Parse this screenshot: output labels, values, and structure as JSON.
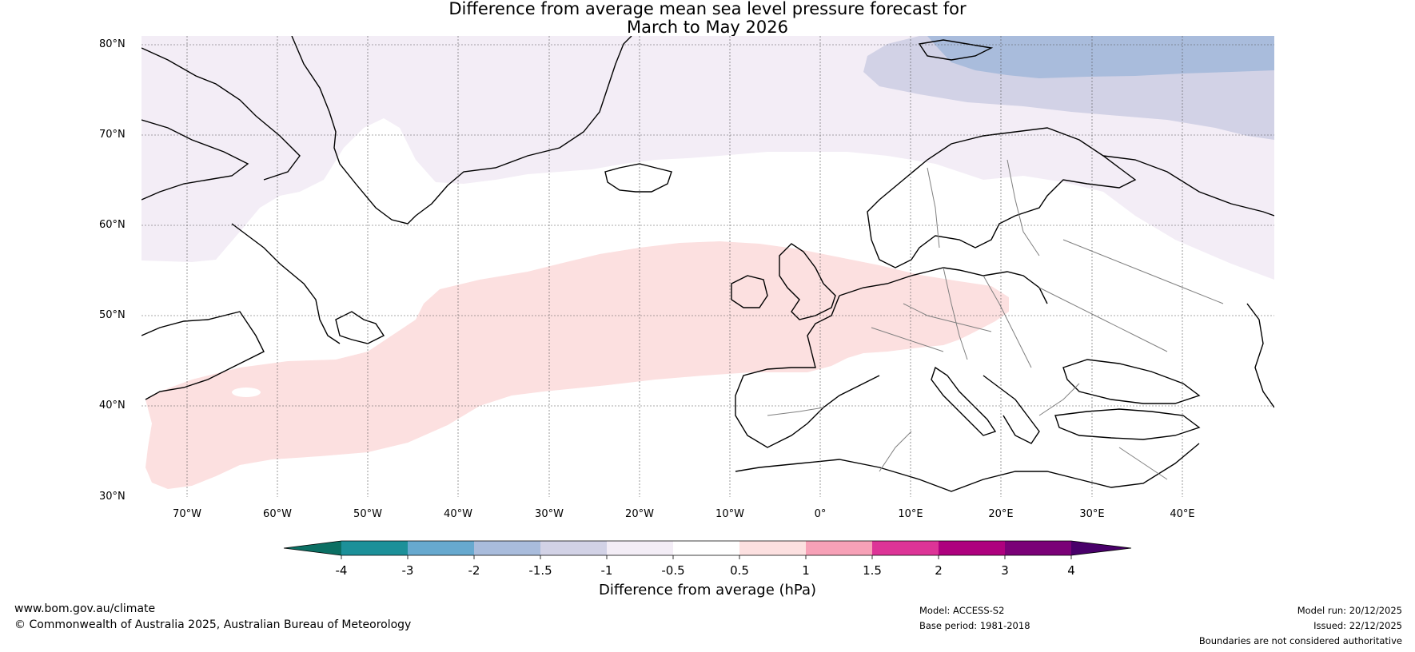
{
  "title": {
    "line1": "Difference from average mean sea level pressure forecast for",
    "line2": "March to May 2026"
  },
  "map": {
    "latitude_labels": [
      "80°N",
      "70°N",
      "60°N",
      "50°N",
      "40°N",
      "30°N"
    ],
    "longitude_labels": [
      "70°W",
      "60°W",
      "50°W",
      "40°W",
      "30°W",
      "20°W",
      "10°W",
      "0°",
      "10°E",
      "20°E",
      "30°E",
      "40°E"
    ],
    "colors": {
      "neg_2_to_neg_1_5": "#a9bcdc",
      "neg_1_5_to_neg_1": "#d2d2e6",
      "neg_1_to_neg_0_5": "#f3edf6",
      "pos_0_5_to_1": "#fce0e0",
      "coastline": "#000000",
      "border": "#808080"
    }
  },
  "colorbar": {
    "tick_labels": [
      "-4",
      "-3",
      "-2",
      "-1.5",
      "-1",
      "-0.5",
      "0.5",
      "1",
      "1.5",
      "2",
      "3",
      "4"
    ],
    "colors": [
      "#0b6f63",
      "#1c9099",
      "#67a9cf",
      "#a9bcdc",
      "#d2d2e6",
      "#f3edf6",
      "#ffffff",
      "#fce0e0",
      "#f7a1b7",
      "#dd3497",
      "#ae017e",
      "#7a0177",
      "#49006a"
    ],
    "label": "Difference from average (hPa)"
  },
  "footer": {
    "website": "www.bom.gov.au/climate",
    "copyright": "© Commonwealth of Australia 2025, Australian Bureau of Meteorology",
    "model": "Model: ACCESS-S2",
    "base_period": "Base period: 1981-2018",
    "model_run": "Model run: 20/12/2025",
    "issued": "Issued: 22/12/2025",
    "disclaimer": "Boundaries are not considered authoritative"
  }
}
